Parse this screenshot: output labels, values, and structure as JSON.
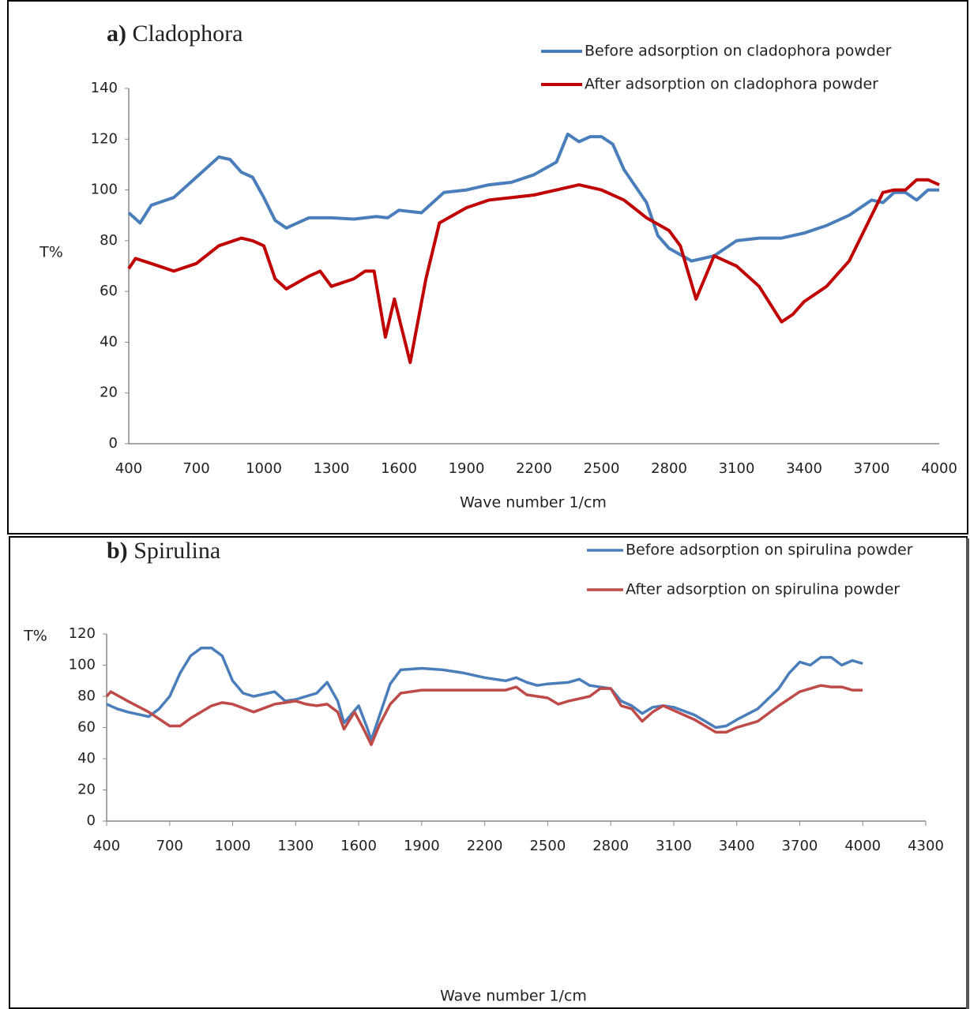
{
  "chart_data": [
    {
      "type": "line",
      "panel": "a)",
      "title": "Cladophora",
      "xlabel": "Wave number 1/cm",
      "ylabel": "T%",
      "xlim": [
        400,
        4000
      ],
      "ylim": [
        0,
        140
      ],
      "xticks": [
        400,
        700,
        1000,
        1300,
        1600,
        1900,
        2200,
        2500,
        2800,
        3100,
        3400,
        3700,
        4000
      ],
      "yticks": [
        0,
        20,
        40,
        60,
        80,
        100,
        120,
        140
      ],
      "grid": false,
      "series": [
        {
          "name": "Before adsorption on cladophora powder",
          "color": "#4a7ebb",
          "x": [
            400,
            450,
            500,
            600,
            700,
            800,
            850,
            900,
            950,
            1000,
            1050,
            1100,
            1200,
            1300,
            1400,
            1500,
            1550,
            1600,
            1700,
            1800,
            1900,
            2000,
            2100,
            2200,
            2300,
            2350,
            2400,
            2450,
            2500,
            2550,
            2600,
            2700,
            2750,
            2800,
            2900,
            3000,
            3100,
            3200,
            3300,
            3400,
            3500,
            3600,
            3700,
            3750,
            3800,
            3850,
            3900,
            3950,
            4000
          ],
          "values": [
            91,
            87,
            94,
            97,
            105,
            113,
            112,
            107,
            105,
            97,
            88,
            85,
            89,
            89,
            88.5,
            89.5,
            89,
            92,
            91,
            99,
            100,
            102,
            103,
            106,
            111,
            122,
            119,
            121,
            121,
            118,
            108,
            95,
            82,
            77,
            72,
            74,
            80,
            81,
            81,
            83,
            86,
            90,
            96,
            95,
            99,
            99,
            96,
            100,
            100
          ]
        },
        {
          "name": "After adsorption on cladophora powder",
          "color": "#c00000",
          "x": [
            400,
            430,
            500,
            600,
            700,
            800,
            900,
            950,
            1000,
            1050,
            1100,
            1200,
            1250,
            1300,
            1400,
            1450,
            1490,
            1540,
            1580,
            1650,
            1720,
            1780,
            1900,
            2000,
            2100,
            2200,
            2300,
            2400,
            2500,
            2600,
            2700,
            2800,
            2850,
            2880,
            2920,
            3000,
            3050,
            3100,
            3200,
            3300,
            3350,
            3400,
            3500,
            3550,
            3600,
            3700,
            3750,
            3800,
            3850,
            3900,
            3950,
            4000
          ],
          "values": [
            69,
            73,
            71,
            68,
            71,
            78,
            81,
            80,
            78,
            65,
            61,
            66,
            68,
            62,
            65,
            68,
            68,
            42,
            57,
            32,
            65,
            87,
            93,
            96,
            97,
            98,
            100,
            102,
            100,
            96,
            89,
            84,
            78,
            69,
            57,
            74,
            72,
            70,
            62,
            48,
            51,
            56,
            62,
            67,
            72,
            90,
            99,
            100,
            100,
            104,
            104,
            102
          ]
        }
      ]
    },
    {
      "type": "line",
      "panel": "b)",
      "title": "Spirulina",
      "xlabel": "Wave number 1/cm",
      "ylabel": "T%",
      "xlim": [
        400,
        4300
      ],
      "ylim": [
        0,
        120
      ],
      "xticks": [
        400,
        700,
        1000,
        1300,
        1600,
        1900,
        2200,
        2500,
        2800,
        3100,
        3400,
        3700,
        4000,
        4300
      ],
      "yticks": [
        0,
        20,
        40,
        60,
        80,
        100,
        120
      ],
      "grid": false,
      "series": [
        {
          "name": "Before adsorption on spirulina powder",
          "color": "#4a7ebb",
          "x": [
            400,
            450,
            500,
            600,
            650,
            700,
            750,
            800,
            850,
            900,
            950,
            1000,
            1050,
            1100,
            1200,
            1250,
            1300,
            1400,
            1450,
            1500,
            1530,
            1600,
            1640,
            1660,
            1700,
            1750,
            1800,
            1900,
            2000,
            2100,
            2200,
            2300,
            2350,
            2400,
            2450,
            2500,
            2600,
            2650,
            2700,
            2800,
            2850,
            2900,
            2950,
            3000,
            3050,
            3100,
            3200,
            3300,
            3350,
            3400,
            3500,
            3600,
            3650,
            3700,
            3750,
            3800,
            3850,
            3900,
            3950,
            4000
          ],
          "values": [
            75,
            72,
            70,
            67,
            72,
            80,
            95,
            106,
            111,
            111,
            106,
            90,
            82,
            80,
            83,
            77,
            78,
            82,
            89,
            77,
            63,
            74,
            60,
            52,
            68,
            88,
            97,
            98,
            97,
            95,
            92,
            90,
            92,
            89,
            87,
            88,
            89,
            91,
            87,
            85,
            77,
            74,
            69,
            73,
            74,
            73,
            68,
            60,
            61,
            65,
            72,
            85,
            95,
            102,
            100,
            105,
            105,
            100,
            103,
            101
          ]
        },
        {
          "name": "After adsorption on spirulina powder",
          "color": "#be4b48",
          "x": [
            400,
            420,
            500,
            600,
            700,
            750,
            800,
            900,
            950,
            1000,
            1100,
            1200,
            1300,
            1350,
            1400,
            1450,
            1500,
            1530,
            1580,
            1620,
            1660,
            1700,
            1750,
            1800,
            1900,
            2000,
            2100,
            2200,
            2300,
            2350,
            2400,
            2500,
            2550,
            2600,
            2700,
            2750,
            2800,
            2850,
            2900,
            2950,
            3000,
            3050,
            3100,
            3200,
            3300,
            3350,
            3400,
            3500,
            3600,
            3700,
            3800,
            3850,
            3900,
            3950,
            4000
          ],
          "values": [
            80,
            83,
            77,
            70,
            61,
            61,
            66,
            74,
            76,
            75,
            70,
            75,
            77,
            75,
            74,
            75,
            70,
            59,
            70,
            60,
            49,
            62,
            75,
            82,
            84,
            84,
            84,
            84,
            84,
            86,
            81,
            79,
            75,
            77,
            80,
            85,
            85,
            74,
            72,
            64,
            70,
            74,
            71,
            65,
            57,
            57,
            60,
            64,
            74,
            83,
            87,
            86,
            86,
            84,
            84
          ]
        }
      ]
    }
  ]
}
